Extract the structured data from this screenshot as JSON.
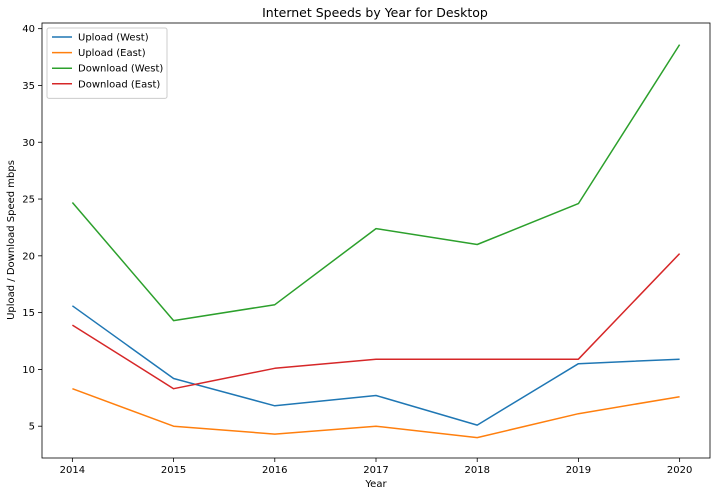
{
  "chart_data": {
    "type": "line",
    "title": "Internet Speeds by Year for Desktop",
    "xlabel": "Year",
    "ylabel": "Upload / Download Speed mbps",
    "x": [
      2014,
      2015,
      2016,
      2017,
      2018,
      2019,
      2020
    ],
    "xlim": [
      2013.7,
      2020.3
    ],
    "ylim": [
      2.2,
      40.5
    ],
    "yticks": [
      5,
      10,
      15,
      20,
      25,
      30,
      35,
      40
    ],
    "grid": false,
    "legend": "top-left",
    "series": [
      {
        "name": "Upload (West)",
        "color": "#1f77b4",
        "values": [
          15.6,
          9.2,
          6.8,
          7.7,
          5.1,
          10.5,
          10.9
        ]
      },
      {
        "name": "Upload (East)",
        "color": "#ff7f0e",
        "values": [
          8.3,
          5.0,
          4.3,
          5.0,
          4.0,
          6.1,
          7.6
        ]
      },
      {
        "name": "Download (West)",
        "color": "#2ca02c",
        "values": [
          24.7,
          14.3,
          15.7,
          22.4,
          21.0,
          24.6,
          38.6
        ]
      },
      {
        "name": "Download (East)",
        "color": "#d62728",
        "values": [
          13.9,
          8.3,
          10.1,
          10.9,
          10.9,
          10.9,
          20.2
        ]
      }
    ]
  }
}
